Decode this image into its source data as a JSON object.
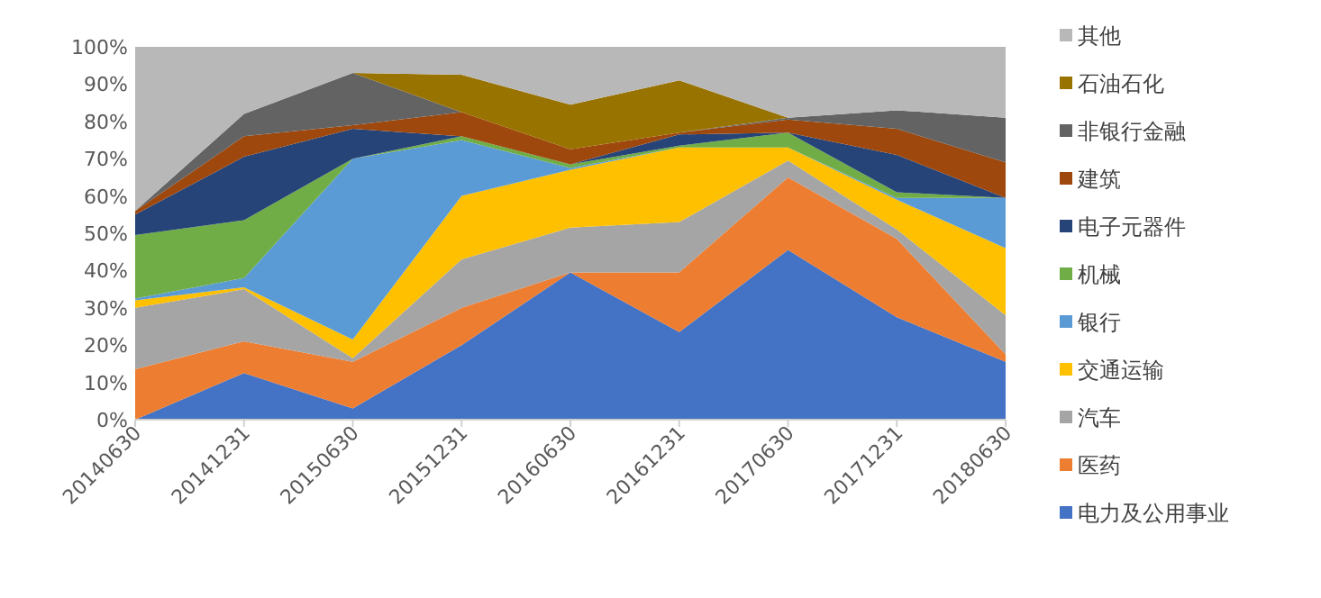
{
  "chart_data": {
    "type": "area",
    "stacked": true,
    "legend": "right",
    "grid": false,
    "categories": [
      "20140630",
      "20141231",
      "20150630",
      "20151231",
      "20160630",
      "20161231",
      "20170630",
      "20171231",
      "20180630"
    ],
    "ylim": [
      0,
      100
    ],
    "yticks": [
      {
        "value": 0,
        "label": "0%"
      },
      {
        "value": 10,
        "label": "10%"
      },
      {
        "value": 20,
        "label": "20%"
      },
      {
        "value": 30,
        "label": "30%"
      },
      {
        "value": 40,
        "label": "40%"
      },
      {
        "value": 50,
        "label": "50%"
      },
      {
        "value": 60,
        "label": "60%"
      },
      {
        "value": 70,
        "label": "70%"
      },
      {
        "value": 80,
        "label": "80%"
      },
      {
        "value": 90,
        "label": "90%"
      },
      {
        "value": 100,
        "label": "100%"
      }
    ],
    "series": [
      {
        "name": "电力及公用事业",
        "color": "#4472c4",
        "values": [
          0,
          12.5,
          3,
          20,
          39.5,
          23.5,
          45.5,
          27.5,
          15.5
        ]
      },
      {
        "name": "医药",
        "color": "#ed7d31",
        "values": [
          13.5,
          8.5,
          12.5,
          10,
          0,
          16,
          19.5,
          21,
          2
        ]
      },
      {
        "name": "汽车",
        "color": "#a5a5a5",
        "values": [
          16.5,
          14,
          1,
          13,
          12,
          13.5,
          4.5,
          2.5,
          10.5
        ]
      },
      {
        "name": "交通运输",
        "color": "#ffc000",
        "values": [
          2,
          0.5,
          5,
          17,
          15.5,
          20,
          3.5,
          8,
          18
        ]
      },
      {
        "name": "银行",
        "color": "#5b9bd5",
        "values": [
          0.5,
          2.5,
          48.5,
          15,
          0.5,
          0,
          0,
          0.5,
          13.5
        ]
      },
      {
        "name": "机械",
        "color": "#70ad47",
        "values": [
          17,
          15.5,
          0,
          1,
          1,
          0.5,
          4,
          1.5,
          0
        ]
      },
      {
        "name": "电子元器件",
        "color": "#264478",
        "values": [
          5.5,
          17,
          8,
          0,
          0,
          3,
          0,
          10,
          0
        ]
      },
      {
        "name": "建筑",
        "color": "#9e480e",
        "values": [
          1,
          5.5,
          1,
          6.5,
          4,
          0.5,
          3.5,
          7,
          9.5
        ]
      },
      {
        "name": "非银行金融",
        "color": "#636363",
        "values": [
          0,
          6,
          14,
          0,
          0,
          0,
          0.5,
          5,
          12
        ]
      },
      {
        "name": "石油石化",
        "color": "#997300",
        "values": [
          null,
          null,
          0,
          10,
          12,
          14,
          0,
          null,
          null
        ]
      },
      {
        "name": "其他",
        "color": "#b8b8b8",
        "values": [
          44,
          18,
          7,
          7.5,
          15.5,
          9,
          19,
          17,
          19
        ]
      }
    ]
  }
}
